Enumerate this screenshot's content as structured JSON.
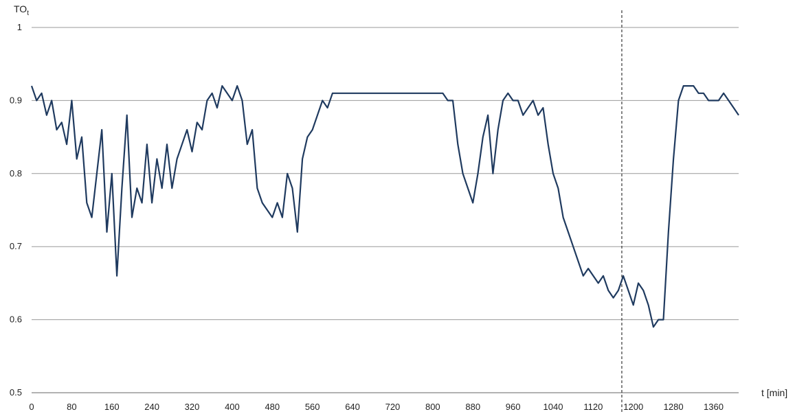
{
  "chart_data": {
    "type": "line",
    "ylabel_main": "TO",
    "ylabel_sub": "t",
    "xlabel": "t [min]",
    "xlim": [
      0,
      1410
    ],
    "ylim": [
      0.5,
      1.0
    ],
    "yticks": [
      0.5,
      0.6,
      0.7,
      0.8,
      0.9,
      1
    ],
    "ytick_labels": [
      "0.5",
      "0.6",
      "0.7",
      "0.8",
      "0.9",
      "1"
    ],
    "xticks": [
      0,
      80,
      160,
      240,
      320,
      400,
      480,
      560,
      640,
      720,
      800,
      880,
      960,
      1040,
      1120,
      1200,
      1280,
      1360
    ],
    "grid": "horizontal",
    "vline_x": 1177,
    "vline_style": "dashed",
    "line_color": "#1f3a5f",
    "series": [
      {
        "x": [
          0,
          10,
          20,
          30,
          40,
          50,
          60,
          70,
          80,
          90,
          100,
          110,
          120,
          130,
          140,
          150,
          160,
          170,
          180,
          190,
          200,
          210,
          220,
          230,
          240,
          250,
          260,
          270,
          280,
          290,
          300,
          310,
          320,
          330,
          340,
          350,
          360,
          370,
          380,
          390,
          400,
          410,
          420,
          430,
          440,
          450,
          460,
          470,
          480,
          490,
          500,
          510,
          520,
          530,
          540,
          550,
          560,
          570,
          580,
          590,
          600,
          620,
          640,
          660,
          680,
          700,
          720,
          740,
          760,
          780,
          800,
          820,
          830,
          840,
          850,
          860,
          870,
          880,
          890,
          900,
          910,
          920,
          930,
          940,
          950,
          960,
          970,
          980,
          990,
          1000,
          1010,
          1020,
          1030,
          1040,
          1050,
          1060,
          1070,
          1080,
          1090,
          1100,
          1110,
          1120,
          1130,
          1140,
          1150,
          1160,
          1170,
          1180,
          1190,
          1200,
          1210,
          1220,
          1230,
          1240,
          1250,
          1260,
          1270,
          1280,
          1290,
          1300,
          1310,
          1320,
          1330,
          1340,
          1350,
          1360,
          1370,
          1380,
          1390,
          1400,
          1410
        ],
        "y": [
          0.92,
          0.9,
          0.91,
          0.88,
          0.9,
          0.86,
          0.87,
          0.84,
          0.9,
          0.82,
          0.85,
          0.76,
          0.74,
          0.8,
          0.86,
          0.72,
          0.8,
          0.66,
          0.78,
          0.88,
          0.74,
          0.78,
          0.76,
          0.84,
          0.76,
          0.82,
          0.78,
          0.84,
          0.78,
          0.82,
          0.84,
          0.86,
          0.83,
          0.87,
          0.86,
          0.9,
          0.91,
          0.89,
          0.92,
          0.91,
          0.9,
          0.92,
          0.9,
          0.84,
          0.86,
          0.78,
          0.76,
          0.75,
          0.74,
          0.76,
          0.74,
          0.8,
          0.78,
          0.72,
          0.82,
          0.85,
          0.86,
          0.88,
          0.9,
          0.89,
          0.91,
          0.91,
          0.91,
          0.91,
          0.91,
          0.91,
          0.91,
          0.91,
          0.91,
          0.91,
          0.91,
          0.91,
          0.9,
          0.9,
          0.84,
          0.8,
          0.78,
          0.76,
          0.8,
          0.85,
          0.88,
          0.8,
          0.86,
          0.9,
          0.91,
          0.9,
          0.9,
          0.88,
          0.89,
          0.9,
          0.88,
          0.89,
          0.84,
          0.8,
          0.78,
          0.74,
          0.72,
          0.7,
          0.68,
          0.66,
          0.67,
          0.66,
          0.65,
          0.66,
          0.64,
          0.63,
          0.64,
          0.66,
          0.64,
          0.62,
          0.65,
          0.64,
          0.62,
          0.59,
          0.6,
          0.6,
          0.72,
          0.82,
          0.9,
          0.92,
          0.92,
          0.92,
          0.91,
          0.91,
          0.9,
          0.9,
          0.9,
          0.91,
          0.9,
          0.89,
          0.88
        ]
      }
    ]
  }
}
